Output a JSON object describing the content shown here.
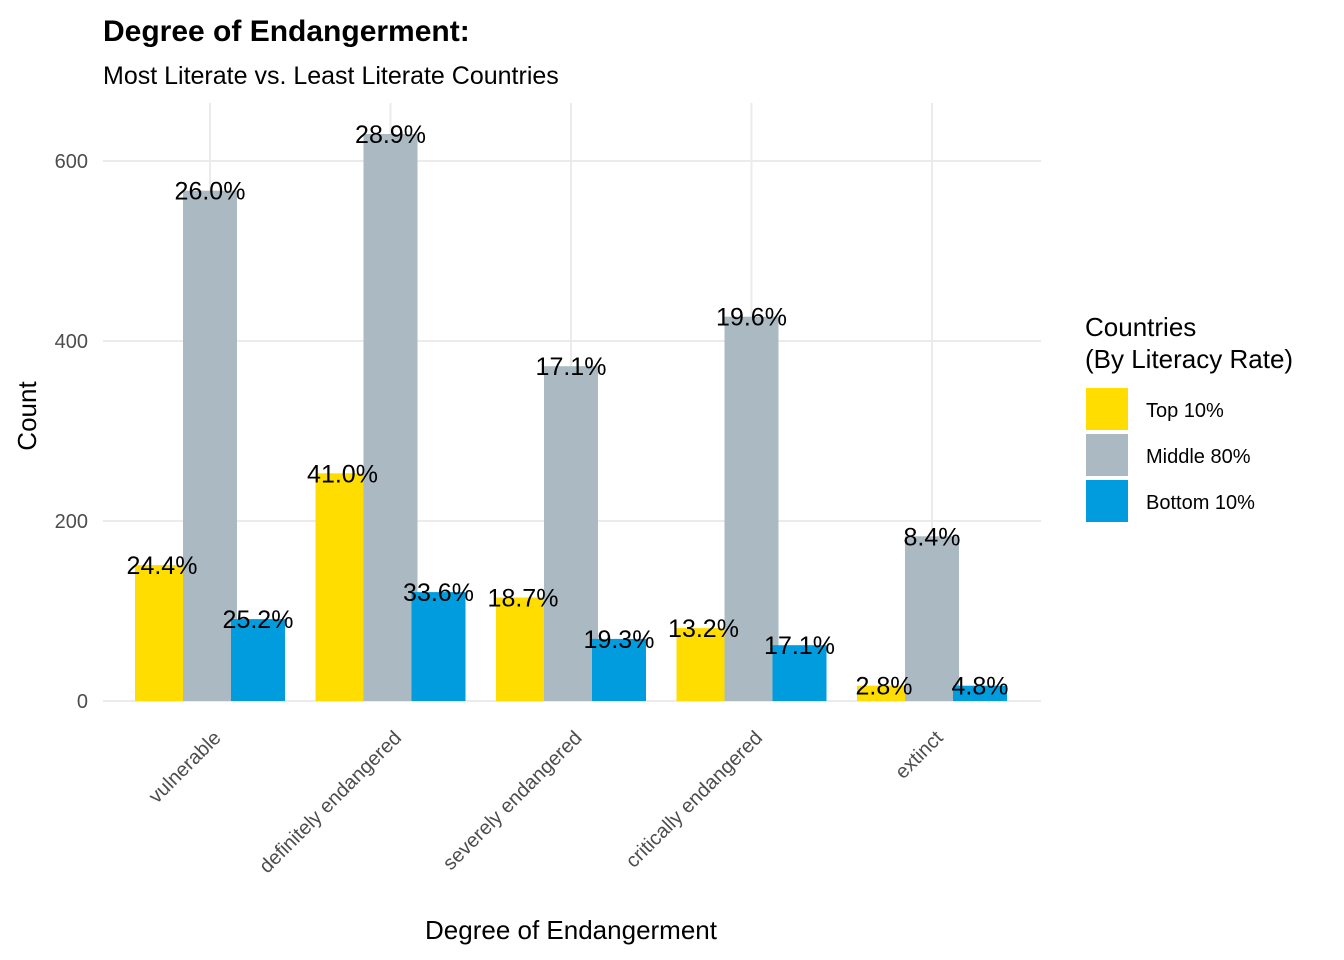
{
  "chart_data": {
    "type": "bar",
    "title": "Degree of Endangerment:",
    "subtitle": "Most Literate vs. Least Literate Countries",
    "xlabel": "Degree of Endangerment",
    "ylabel": "Count",
    "ylim": [
      0,
      650
    ],
    "yticks": [
      0,
      200,
      400,
      600
    ],
    "grid": true,
    "legend_position": "right",
    "legend_title": [
      "Countries",
      "(By Literacy Rate)"
    ],
    "categories": [
      "vulnerable",
      "definitely endangered",
      "severely endangered",
      "critically endangered",
      "extinct"
    ],
    "series": [
      {
        "name": "Top 10%",
        "color": "#FFDD00",
        "values": [
          151,
          253,
          115,
          81,
          17
        ],
        "labels": [
          "24.4%",
          "41.0%",
          "18.7%",
          "13.2%",
          "2.8%"
        ]
      },
      {
        "name": "Middle 80%",
        "color": "#AAB9C2",
        "values": [
          567,
          630,
          372,
          427,
          183
        ],
        "labels": [
          "26.0%",
          "28.9%",
          "17.1%",
          "19.6%",
          "8.4%"
        ]
      },
      {
        "name": "Bottom 10%",
        "color": "#009CDE",
        "values": [
          91,
          121,
          69,
          62,
          17
        ],
        "labels": [
          "25.2%",
          "33.6%",
          "19.3%",
          "17.1%",
          "4.8%"
        ]
      }
    ]
  }
}
